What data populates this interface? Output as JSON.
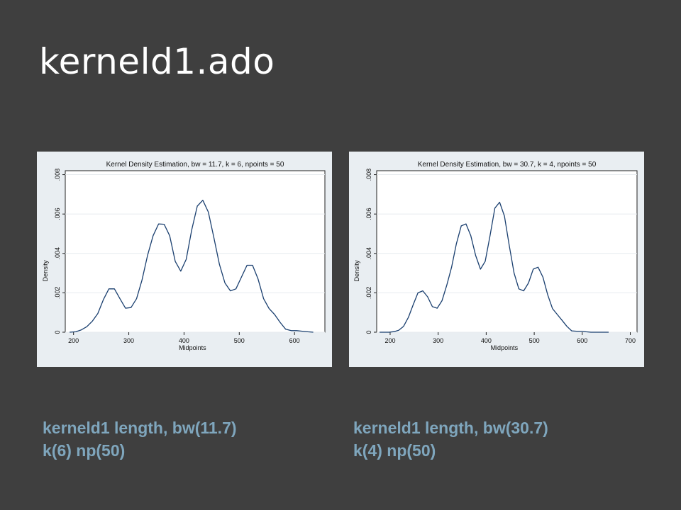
{
  "slide": {
    "title": "kerneld1.ado"
  },
  "captions": [
    {
      "line1": "kerneld1 length, bw(11.7)",
      "line2": "k(6) np(50)"
    },
    {
      "line1": "kerneld1 length, bw(30.7)",
      "line2": "k(4) np(50)"
    }
  ],
  "chart_data": [
    {
      "type": "line",
      "title": "Kernel Density Estimation, bw = 11.7, k = 6, npoints = 50",
      "xlabel": "Midpoints",
      "ylabel": "Density",
      "xlim": [
        185,
        655
      ],
      "ylim": [
        0,
        0.0082
      ],
      "xticks": [
        200,
        300,
        400,
        500,
        600
      ],
      "yticks": [
        0,
        0.002,
        0.004,
        0.006,
        0.008
      ],
      "ytick_labels": [
        "0",
        ".002",
        ".004",
        ".006",
        ".008"
      ],
      "grid": true,
      "line_color": "#1a3f6f",
      "series": [
        {
          "x": [
            193,
            204,
            214,
            224,
            234,
            244,
            254,
            264,
            274,
            284,
            294,
            304,
            314,
            324,
            334,
            344,
            354,
            364,
            374,
            384,
            394,
            404,
            414,
            424,
            434,
            444,
            454,
            464,
            474,
            484,
            494,
            504,
            514,
            524,
            534,
            544,
            554,
            564,
            574,
            584,
            594,
            604,
            614,
            624,
            634
          ],
          "y": [
            0,
            2e-05,
            0.00012,
            0.00028,
            0.00056,
            0.00095,
            0.00165,
            0.0022,
            0.0022,
            0.0017,
            0.00122,
            0.00125,
            0.0017,
            0.00265,
            0.0039,
            0.0049,
            0.0055,
            0.00548,
            0.0049,
            0.0036,
            0.0031,
            0.0037,
            0.0052,
            0.0064,
            0.0067,
            0.0061,
            0.0048,
            0.00345,
            0.0025,
            0.0021,
            0.0022,
            0.0028,
            0.0034,
            0.0034,
            0.0027,
            0.0017,
            0.0012,
            0.0009,
            0.0005,
            0.00015,
            8e-05,
            8e-05,
            5e-05,
            2e-05,
            0
          ]
        }
      ]
    },
    {
      "type": "line",
      "title": "Kernel Density Estimation, bw = 30.7, k = 4, npoints = 50",
      "xlabel": "Midpoints",
      "ylabel": "Density",
      "xlim": [
        172,
        714
      ],
      "ylim": [
        0,
        0.0082
      ],
      "xticks": [
        200,
        300,
        400,
        500,
        600,
        700
      ],
      "yticks": [
        0,
        0.002,
        0.004,
        0.006,
        0.008
      ],
      "ytick_labels": [
        "0",
        ".002",
        ".004",
        ".006",
        ".008"
      ],
      "grid": true,
      "line_color": "#1a3f6f",
      "series": [
        {
          "x": [
            178,
            188,
            198,
            208,
            218,
            228,
            238,
            248,
            258,
            268,
            278,
            288,
            298,
            308,
            318,
            328,
            338,
            348,
            358,
            368,
            378,
            388,
            398,
            408,
            418,
            428,
            438,
            448,
            458,
            468,
            478,
            488,
            498,
            508,
            518,
            528,
            538,
            548,
            558,
            568,
            578,
            588,
            598,
            608,
            618,
            628,
            638,
            648,
            655
          ],
          "y": [
            0,
            0,
            0,
            3e-05,
            0.0001,
            0.0003,
            0.00075,
            0.0014,
            0.002,
            0.0021,
            0.0018,
            0.0013,
            0.00122,
            0.0016,
            0.0024,
            0.0033,
            0.0045,
            0.0054,
            0.0055,
            0.0049,
            0.0039,
            0.0032,
            0.0036,
            0.0049,
            0.0063,
            0.0066,
            0.0059,
            0.0044,
            0.003,
            0.0022,
            0.0021,
            0.0025,
            0.0032,
            0.0033,
            0.0028,
            0.0019,
            0.0012,
            0.0009,
            0.0006,
            0.0003,
            7e-05,
            5e-05,
            5e-05,
            2e-05,
            0,
            0,
            0,
            0,
            0
          ]
        }
      ]
    }
  ]
}
